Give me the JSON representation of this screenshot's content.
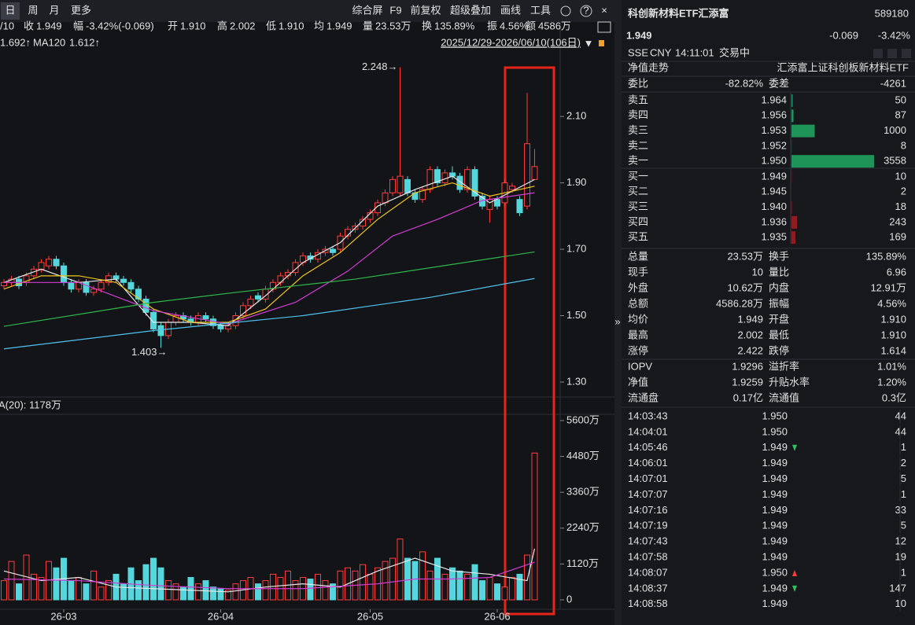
{
  "toolbar": {
    "periods": [
      "日",
      "周",
      "月",
      "更多"
    ],
    "tools": [
      "综合屏",
      "F9",
      "前复权",
      "超级叠加",
      "画线",
      "工具"
    ]
  },
  "quote_bar": {
    "prefix": "/10",
    "items": [
      {
        "label": "收",
        "value": "1.949",
        "tone": "down"
      },
      {
        "label": "幅",
        "value": "-3.42%(-0.069)",
        "tone": "down"
      },
      {
        "label": "开",
        "value": "1.910",
        "tone": "down"
      },
      {
        "label": "高",
        "value": "2.002",
        "tone": "down"
      },
      {
        "label": "低",
        "value": "1.910",
        "tone": "down"
      },
      {
        "label": "均",
        "value": "1.949",
        "tone": "down"
      },
      {
        "label": "量",
        "value": "23.53万",
        "tone": "flat"
      },
      {
        "label": "换",
        "value": "135.89%",
        "tone": "flat"
      },
      {
        "label": "振",
        "value": "4.56%",
        "tone": "flat"
      },
      {
        "label": "额",
        "value": "4586万",
        "tone": "flat"
      }
    ]
  },
  "ma_bar": {
    "ma60": "1.692↑",
    "ma120": "1.612↑",
    "range": "2025/12/29-2026/06/10(106日)"
  },
  "chart_data": [
    {
      "type": "candlestick",
      "up_color": "#ff3d3d",
      "down_color": "#54d6dc",
      "categories": [
        null,
        null,
        null,
        null,
        null,
        null,
        null,
        null,
        "26-03",
        null,
        null,
        null,
        null,
        null,
        null,
        null,
        null,
        null,
        null,
        null,
        null,
        null,
        null,
        null,
        null,
        null,
        null,
        null,
        null,
        "26-04",
        null,
        null,
        null,
        null,
        null,
        null,
        null,
        null,
        null,
        null,
        null,
        null,
        null,
        null,
        null,
        null,
        null,
        null,
        null,
        "26-05",
        null,
        null,
        null,
        null,
        null,
        null,
        null,
        null,
        null,
        null,
        null,
        null,
        null,
        null,
        null,
        null,
        "26-06",
        null,
        null,
        null,
        null,
        null
      ],
      "open": [
        1.59,
        1.6,
        1.61,
        1.6,
        1.62,
        1.64,
        1.65,
        1.67,
        1.65,
        1.6,
        1.58,
        1.6,
        1.57,
        1.58,
        1.6,
        1.62,
        1.61,
        1.6,
        1.58,
        1.55,
        1.51,
        1.47,
        1.44,
        1.48,
        1.5,
        1.49,
        1.48,
        1.5,
        1.49,
        1.47,
        1.46,
        1.47,
        1.5,
        1.53,
        1.56,
        1.55,
        1.58,
        1.6,
        1.62,
        1.63,
        1.66,
        1.68,
        1.67,
        1.69,
        1.7,
        1.7,
        1.74,
        1.76,
        1.77,
        1.79,
        1.81,
        1.84,
        1.87,
        1.87,
        1.91,
        1.87,
        1.85,
        1.88,
        1.94,
        1.9,
        1.93,
        1.92,
        1.88,
        1.94,
        1.86,
        1.82,
        1.85,
        1.84,
        1.88,
        1.85,
        1.83,
        1.91
      ],
      "high": [
        1.61,
        1.62,
        1.62,
        1.63,
        1.65,
        1.67,
        1.68,
        1.68,
        1.66,
        1.61,
        1.61,
        1.61,
        1.59,
        1.61,
        1.63,
        1.63,
        1.62,
        1.61,
        1.59,
        1.56,
        1.52,
        1.48,
        1.49,
        1.51,
        1.51,
        1.5,
        1.51,
        1.51,
        1.5,
        1.48,
        1.48,
        1.51,
        1.54,
        1.56,
        1.57,
        1.59,
        1.61,
        1.63,
        1.64,
        1.67,
        1.69,
        1.69,
        1.7,
        1.71,
        1.71,
        1.75,
        1.77,
        1.78,
        1.8,
        1.82,
        1.85,
        1.88,
        1.92,
        2.248,
        1.92,
        1.88,
        1.89,
        1.95,
        1.95,
        1.94,
        1.95,
        1.93,
        1.95,
        1.95,
        1.87,
        1.86,
        1.86,
        1.91,
        1.9,
        1.86,
        2.171,
        2.002
      ],
      "low": [
        1.58,
        1.59,
        1.58,
        1.59,
        1.61,
        1.63,
        1.64,
        1.64,
        1.59,
        1.57,
        1.57,
        1.56,
        1.56,
        1.57,
        1.59,
        1.6,
        1.59,
        1.57,
        1.54,
        1.5,
        1.45,
        1.403,
        1.43,
        1.47,
        1.48,
        1.47,
        1.47,
        1.48,
        1.46,
        1.45,
        1.45,
        1.46,
        1.49,
        1.52,
        1.54,
        1.54,
        1.57,
        1.59,
        1.61,
        1.62,
        1.65,
        1.66,
        1.66,
        1.68,
        1.68,
        1.69,
        1.73,
        1.75,
        1.76,
        1.78,
        1.8,
        1.83,
        1.86,
        1.86,
        1.86,
        1.84,
        1.84,
        1.87,
        1.89,
        1.89,
        1.91,
        1.87,
        1.87,
        1.85,
        1.82,
        1.78,
        1.82,
        1.83,
        1.87,
        1.8,
        1.82,
        1.91
      ],
      "close": [
        1.6,
        1.61,
        1.59,
        1.62,
        1.64,
        1.66,
        1.67,
        1.65,
        1.6,
        1.58,
        1.6,
        1.57,
        1.58,
        1.6,
        1.62,
        1.61,
        1.6,
        1.58,
        1.55,
        1.51,
        1.46,
        1.44,
        1.48,
        1.5,
        1.49,
        1.48,
        1.5,
        1.49,
        1.47,
        1.46,
        1.47,
        1.5,
        1.53,
        1.55,
        1.55,
        1.58,
        1.6,
        1.62,
        1.63,
        1.66,
        1.68,
        1.67,
        1.69,
        1.7,
        1.69,
        1.74,
        1.76,
        1.77,
        1.79,
        1.81,
        1.84,
        1.87,
        1.91,
        1.92,
        1.87,
        1.85,
        1.88,
        1.94,
        1.9,
        1.93,
        1.92,
        1.88,
        1.94,
        1.86,
        1.83,
        1.85,
        1.83,
        1.9,
        1.89,
        1.81,
        2.018,
        1.949
      ],
      "ylim": [
        1.255,
        2.356
      ],
      "yticks": [
        {
          "value": 1.3,
          "label": "1.30"
        },
        {
          "value": 1.5,
          "label": "1.50"
        },
        {
          "value": 1.7,
          "label": "1.70"
        },
        {
          "value": 1.9,
          "label": "1.90"
        },
        {
          "value": 2.1,
          "label": "2.10"
        }
      ],
      "annotations": {
        "high": "2.248→",
        "low": "1.403→"
      },
      "series": [
        {
          "color": "#e8e8e8",
          "x": [
            0,
            5,
            10,
            15,
            20,
            25,
            30,
            35,
            40,
            45,
            50,
            55,
            60,
            65,
            71
          ],
          "values": [
            1.6,
            1.64,
            1.6,
            1.61,
            1.48,
            1.48,
            1.47,
            1.56,
            1.66,
            1.72,
            1.83,
            1.88,
            1.92,
            1.84,
            1.91
          ]
        },
        {
          "color": "#f0c419",
          "x": [
            0,
            5,
            10,
            15,
            20,
            25,
            30,
            35,
            40,
            45,
            50,
            55,
            60,
            65,
            71
          ],
          "values": [
            1.58,
            1.62,
            1.62,
            1.6,
            1.52,
            1.48,
            1.48,
            1.52,
            1.62,
            1.69,
            1.79,
            1.87,
            1.9,
            1.86,
            1.89
          ]
        },
        {
          "color": "#d23cd2",
          "x": [
            0,
            10,
            20,
            30,
            39,
            46,
            52,
            58,
            64,
            71
          ],
          "values": [
            1.6,
            1.6,
            1.515,
            1.475,
            1.54,
            1.634,
            1.74,
            1.79,
            1.847,
            1.87
          ]
        },
        {
          "color": "#2fb84a",
          "x": [
            0,
            20,
            31,
            47,
            71
          ],
          "values": [
            1.468,
            1.54,
            1.57,
            1.61,
            1.692
          ]
        },
        {
          "name": "MA120",
          "color": "#4fc3f0",
          "x": [
            0,
            20,
            40,
            57,
            71
          ],
          "values": [
            1.4,
            1.455,
            1.5,
            1.555,
            1.612
          ]
        }
      ]
    },
    {
      "type": "bar",
      "label": "A(20): 1178万",
      "values": [
        600,
        1200,
        500,
        1400,
        800,
        700,
        1200,
        1000,
        1300,
        600,
        700,
        500,
        900,
        400,
        600,
        800,
        500,
        1000,
        600,
        1100,
        1300,
        1000,
        600,
        500,
        400,
        700,
        500,
        600,
        400,
        350,
        300,
        500,
        600,
        700,
        500,
        600,
        800,
        700,
        900,
        600,
        700,
        650,
        800,
        600,
        500,
        900,
        1000,
        900,
        1100,
        800,
        1000,
        1200,
        1300,
        1900,
        1300,
        1200,
        1500,
        900,
        1300,
        800,
        1000,
        900,
        800,
        1100,
        600,
        700,
        500,
        400,
        700,
        800,
        1400,
        4586
      ],
      "ylim": [
        -295,
        5796
      ],
      "yticks": [
        0,
        {
          "value": 1120,
          "label": "1120万"
        },
        {
          "value": 2240,
          "label": "2240万"
        },
        {
          "value": 3360,
          "label": "3360万"
        },
        {
          "value": 4480,
          "label": "4480万"
        },
        {
          "value": 5600,
          "label": "5600万"
        }
      ],
      "series": [
        {
          "color": "#e8e8e8",
          "x": [
            0,
            5,
            10,
            15,
            20,
            25,
            30,
            35,
            40,
            45,
            50,
            55,
            60,
            65,
            70,
            71
          ],
          "values": [
            900,
            600,
            700,
            400,
            350,
            300,
            250,
            400,
            500,
            400,
            900,
            1300,
            900,
            800,
            600,
            1600
          ]
        },
        {
          "color": "#d23cd2",
          "x": [
            0,
            10,
            20,
            30,
            40,
            50,
            55,
            60,
            65,
            71
          ],
          "values": [
            650,
            600,
            450,
            350,
            350,
            500,
            650,
            650,
            700,
            1178
          ]
        }
      ]
    }
  ],
  "panel": {
    "name": "科创新材料ETF汇添富",
    "code": "589180",
    "price": "1.949",
    "change": "-0.069",
    "change_pct": "-3.42%",
    "meta": [
      "SSE",
      "CNY",
      "14:11:01",
      "交易中"
    ],
    "nav_tab": "净值走势",
    "fund_name": "汇添富上证科创板新材料ETF",
    "ratio": [
      {
        "label": "委比",
        "value": "-82.82%",
        "tone": "down"
      },
      {
        "label": "委差",
        "value": "-4261",
        "tone": "down"
      }
    ],
    "asks": [
      {
        "label": "卖五",
        "price": "1.964",
        "volume": 50
      },
      {
        "label": "卖四",
        "price": "1.956",
        "volume": 87
      },
      {
        "label": "卖三",
        "price": "1.953",
        "volume": 1000
      },
      {
        "label": "卖二",
        "price": "1.952",
        "volume": 8
      },
      {
        "label": "卖一",
        "price": "1.950",
        "volume": 3558
      }
    ],
    "bids": [
      {
        "label": "买一",
        "price": "1.949",
        "volume": 10
      },
      {
        "label": "买二",
        "price": "1.945",
        "volume": 2
      },
      {
        "label": "买三",
        "price": "1.940",
        "volume": 18
      },
      {
        "label": "买四",
        "price": "1.936",
        "volume": 243
      },
      {
        "label": "买五",
        "price": "1.935",
        "volume": 169
      }
    ],
    "stats": [
      [
        {
          "label": "总量",
          "value": "23.53万",
          "tone": "flat"
        },
        {
          "label": "换手",
          "value": "135.89%",
          "tone": "flat"
        }
      ],
      [
        {
          "label": "现手",
          "value": "10",
          "tone": "flat"
        },
        {
          "label": "量比",
          "value": "6.96",
          "tone": "flat"
        }
      ],
      [
        {
          "label": "外盘",
          "value": "10.62万",
          "tone": "up"
        },
        {
          "label": "内盘",
          "value": "12.91万",
          "tone": "down"
        }
      ],
      [
        {
          "label": "总额",
          "value": "4586.28万",
          "tone": "flat"
        },
        {
          "label": "振幅",
          "value": "4.56%",
          "tone": "flat"
        }
      ],
      [
        {
          "label": "均价",
          "value": "1.949",
          "tone": "down"
        },
        {
          "label": "开盘",
          "value": "1.910",
          "tone": "down"
        }
      ],
      [
        {
          "label": "最高",
          "value": "2.002",
          "tone": "down"
        },
        {
          "label": "最低",
          "value": "1.910",
          "tone": "down"
        }
      ],
      [
        {
          "label": "涨停",
          "value": "2.422",
          "tone": "up"
        },
        {
          "label": "跌停",
          "value": "1.614",
          "tone": "down"
        }
      ]
    ],
    "nav": [
      [
        {
          "label": "IOPV",
          "value": "1.9296",
          "tone": "flat"
        },
        {
          "label": "溢折率",
          "value": "1.01%",
          "tone": "up"
        }
      ],
      [
        {
          "label": "净值",
          "value": "1.9259",
          "tone": "up"
        },
        {
          "label": "升贴水率",
          "value": "1.20%",
          "tone": "up"
        }
      ],
      [
        {
          "label": "流通盘",
          "value": "0.17亿",
          "tone": "flat"
        },
        {
          "label": "流通值",
          "value": "0.3亿",
          "tone": "flat"
        }
      ]
    ],
    "trades": [
      {
        "time": "14:03:43",
        "price": "1.950",
        "volume": "44",
        "side": "buy"
      },
      {
        "time": "14:04:01",
        "price": "1.950",
        "volume": "44",
        "side": "buy"
      },
      {
        "time": "14:05:46",
        "price": "1.949",
        "volume": "1",
        "side": "buy",
        "dir": "down"
      },
      {
        "time": "14:06:01",
        "price": "1.949",
        "volume": "2",
        "side": "buy"
      },
      {
        "time": "14:07:01",
        "price": "1.949",
        "volume": "5",
        "side": "buy"
      },
      {
        "time": "14:07:07",
        "price": "1.949",
        "volume": "1",
        "side": "buy"
      },
      {
        "time": "14:07:16",
        "price": "1.949",
        "volume": "33",
        "side": "buy"
      },
      {
        "time": "14:07:19",
        "price": "1.949",
        "volume": "5",
        "side": "buy"
      },
      {
        "time": "14:07:43",
        "price": "1.949",
        "volume": "12",
        "side": "buy"
      },
      {
        "time": "14:07:58",
        "price": "1.949",
        "volume": "19",
        "side": "buy"
      },
      {
        "time": "14:08:07",
        "price": "1.950",
        "volume": "1",
        "side": "buy",
        "dir": "up"
      },
      {
        "time": "14:08:37",
        "price": "1.949",
        "volume": "147",
        "side": "sell",
        "dir": "down"
      },
      {
        "time": "14:08:58",
        "price": "1.949",
        "volume": "10",
        "side": "sell"
      }
    ]
  }
}
